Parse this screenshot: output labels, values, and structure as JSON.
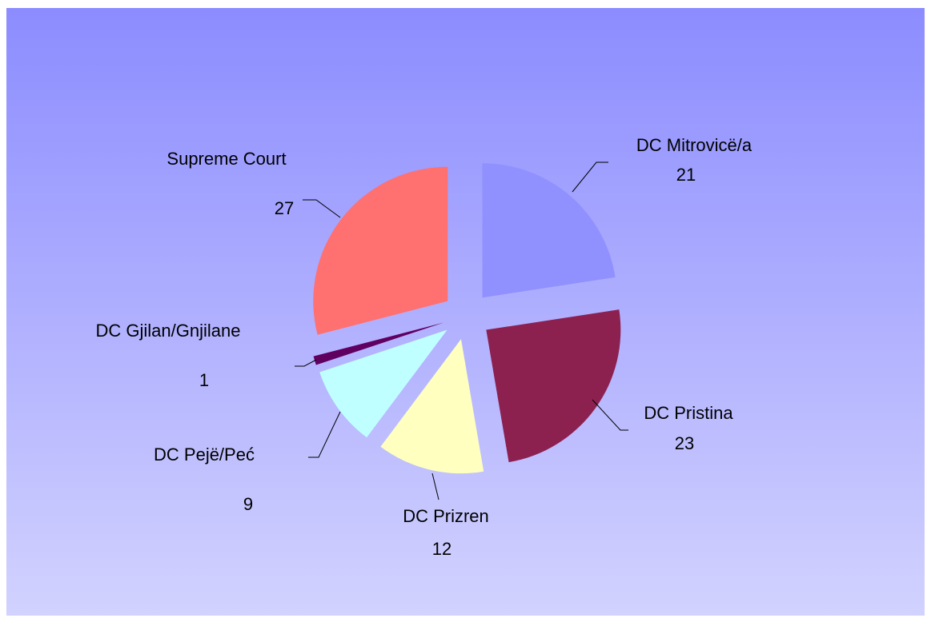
{
  "chart_data": {
    "type": "pie",
    "categories": [
      "DC Mitrovicë/a",
      "DC Pristina",
      "DC Prizren",
      "DC Pejë/Peć",
      "DC Gjilan/Gnjilane",
      "Supreme Court"
    ],
    "values": [
      21,
      23,
      12,
      9,
      1,
      27
    ],
    "colors": [
      "#9090ff",
      "#8c2150",
      "#ffffc0",
      "#c0ffff",
      "#600060",
      "#ff7070"
    ]
  }
}
